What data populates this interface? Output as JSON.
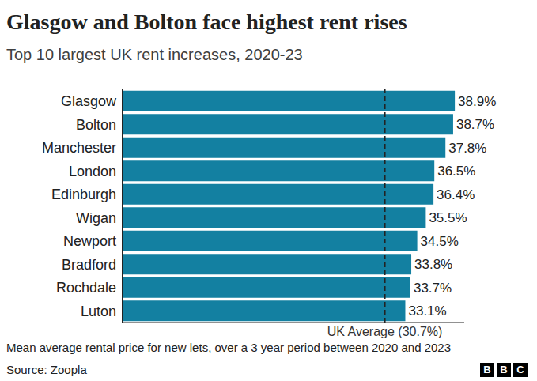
{
  "chart_data": {
    "type": "bar",
    "title": "Glasgow and Bolton face highest rent rises",
    "subtitle": "Top 10 largest UK rent increases, 2020-23",
    "categories": [
      "Glasgow",
      "Bolton",
      "Manchester",
      "London",
      "Edinburgh",
      "Wigan",
      "Newport",
      "Bradford",
      "Rochdale",
      "Luton"
    ],
    "values": [
      38.9,
      38.7,
      37.8,
      36.5,
      36.4,
      35.5,
      34.5,
      33.8,
      33.7,
      33.1
    ],
    "value_labels": [
      "38.9%",
      "38.7%",
      "37.8%",
      "36.5%",
      "36.4%",
      "35.5%",
      "34.5%",
      "33.8%",
      "33.7%",
      "33.1%"
    ],
    "color": "#1380a1",
    "orientation": "horizontal",
    "xlim": [
      0,
      40
    ],
    "xticks": [],
    "tick_labels": "y",
    "data_labels": true,
    "grid": false,
    "annotations": [
      {
        "x": 30.7,
        "label": "UK Average (30.7%)"
      }
    ],
    "note": "Mean average rental price for new lets, over a 3 year period between 2020 and 2023",
    "source": "Source: Zoopla",
    "logo": "BBC"
  }
}
